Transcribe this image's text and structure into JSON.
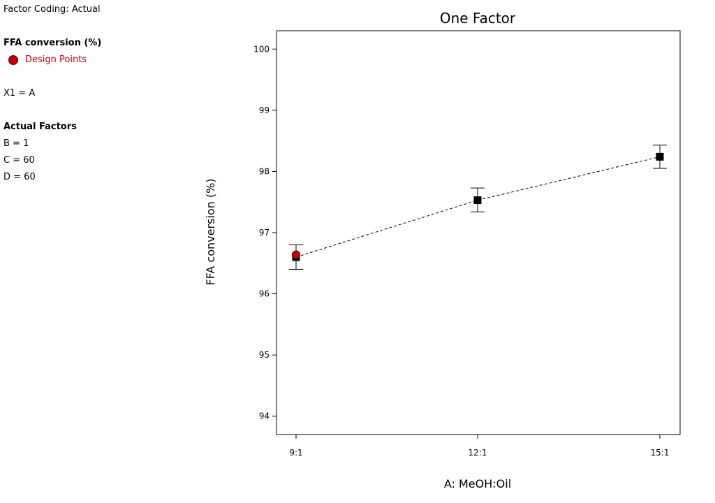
{
  "side_panel": {
    "factor_coding": "Factor Coding: Actual",
    "response_title": "FFA conversion (%)",
    "legend_label": "Design Points",
    "x1_label": "X1 = A",
    "actual_factors_title": "Actual Factors",
    "actual_factors": [
      "B = 1",
      "C = 60",
      "D = 60"
    ],
    "legend_color": "#c00000"
  },
  "chart_data": {
    "type": "line",
    "title": "One Factor",
    "xlabel": "A: MeOH:Oil",
    "ylabel": "FFA conversion (%)",
    "categories": [
      "9:1",
      "12:1",
      "15:1"
    ],
    "ylim": [
      93.7,
      100.3
    ],
    "yticks": [
      94,
      95,
      96,
      97,
      98,
      99,
      100
    ],
    "series": [
      {
        "values": [
          96.6,
          97.53,
          98.24
        ],
        "error_low": [
          96.4,
          97.34,
          98.05
        ],
        "error_high": [
          96.8,
          97.73,
          98.43
        ],
        "line_style": "dashed",
        "marker": "square",
        "color": "#000000"
      }
    ],
    "design_points": [
      {
        "category": "9:1",
        "value": 96.64,
        "color": "#c00000"
      }
    ],
    "grid": false
  }
}
